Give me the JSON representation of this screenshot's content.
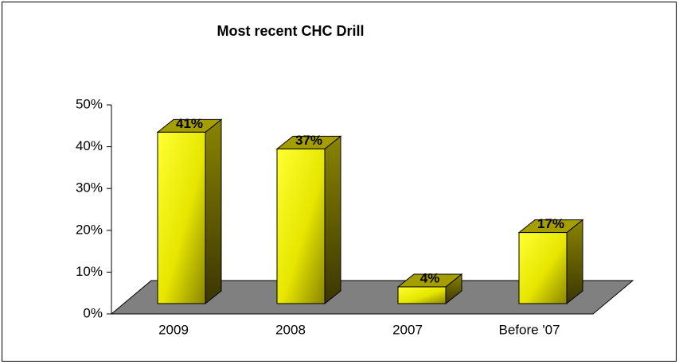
{
  "chart_data": {
    "type": "bar3d",
    "title": "Most recent CHC Drill",
    "categories": [
      "2009",
      "2008",
      "2007",
      "Before '07"
    ],
    "values": [
      41,
      37,
      4,
      17
    ],
    "value_labels": [
      "41%",
      "37%",
      "4%",
      "17%"
    ],
    "color": "#ffff00",
    "ylim": [
      0,
      50
    ],
    "yticks": [
      {
        "value": 0,
        "label": "0%"
      },
      {
        "value": 10,
        "label": "10%"
      },
      {
        "value": 20,
        "label": "20%"
      },
      {
        "value": 30,
        "label": "30%"
      },
      {
        "value": 40,
        "label": "40%"
      },
      {
        "value": 50,
        "label": "50%"
      }
    ]
  }
}
